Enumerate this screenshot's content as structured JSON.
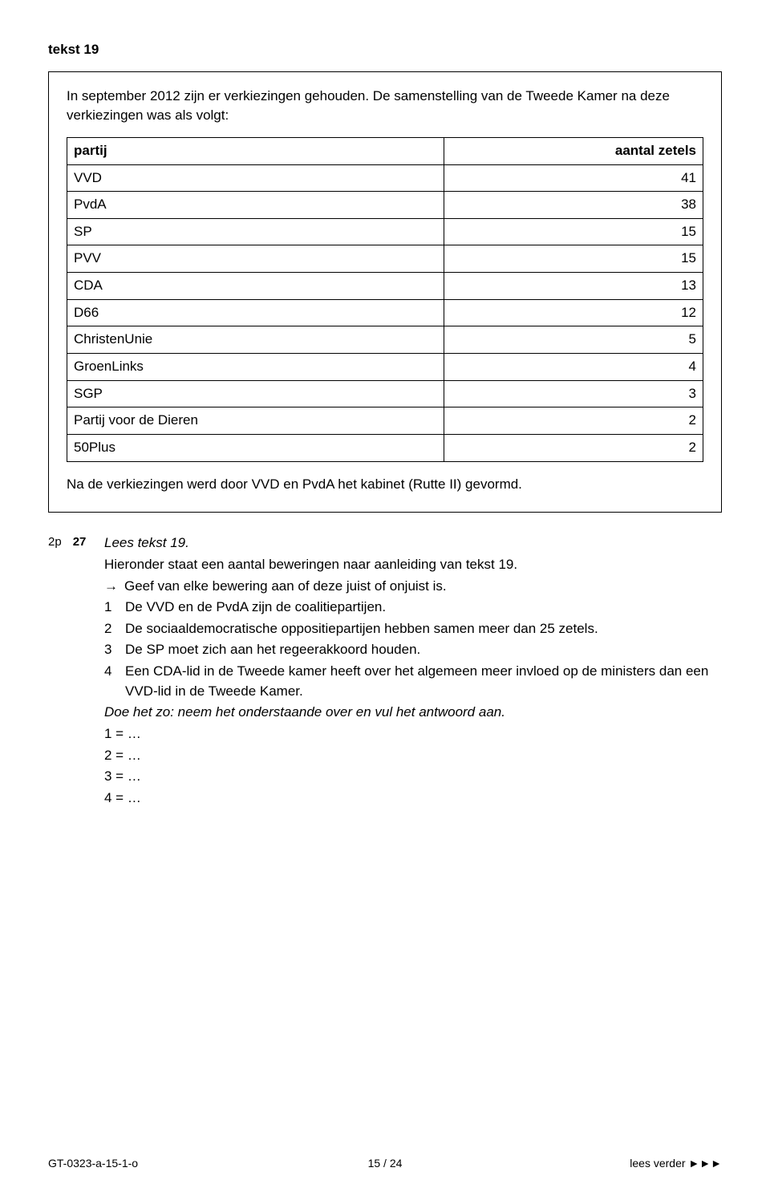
{
  "heading": "tekst 19",
  "box": {
    "intro": "In september 2012 zijn er verkiezingen gehouden. De samenstelling van de Tweede Kamer na deze verkiezingen was als volgt:",
    "table": {
      "col_party": "partij",
      "col_seats": "aantal zetels",
      "rows": [
        {
          "party": "VVD",
          "seats": "41"
        },
        {
          "party": "PvdA",
          "seats": "38"
        },
        {
          "party": "SP",
          "seats": "15"
        },
        {
          "party": "PVV",
          "seats": "15"
        },
        {
          "party": "CDA",
          "seats": "13"
        },
        {
          "party": "D66",
          "seats": "12"
        },
        {
          "party": "ChristenUnie",
          "seats": "5"
        },
        {
          "party": "GroenLinks",
          "seats": "4"
        },
        {
          "party": "SGP",
          "seats": "3"
        },
        {
          "party": "Partij voor de Dieren",
          "seats": "2"
        },
        {
          "party": "50Plus",
          "seats": "2"
        }
      ]
    },
    "after": "Na de verkiezingen werd door VVD en PvdA het kabinet (Rutte II) gevormd."
  },
  "question": {
    "points": "2p",
    "number": "27",
    "lees": "Lees tekst 19.",
    "lead": "Hieronder staat een aantal beweringen naar aanleiding van tekst 19.",
    "instruction": "Geef van elke bewering aan of deze juist of onjuist is.",
    "statements": [
      {
        "n": "1",
        "t": "De VVD en de PvdA zijn de coalitiepartijen."
      },
      {
        "n": "2",
        "t": "De sociaaldemocratische oppositiepartijen hebben samen meer dan 25 zetels."
      },
      {
        "n": "3",
        "t": "De SP moet zich aan het regeerakkoord houden."
      },
      {
        "n": "4",
        "t": "Een CDA-lid in de Tweede kamer heeft over het algemeen meer invloed op de ministers dan een VVD-lid in de Tweede Kamer."
      }
    ],
    "closing": "Doe het zo: neem het onderstaande over en vul het antwoord aan.",
    "answers": [
      "1 = …",
      "2 = …",
      "3 = …",
      "4 = …"
    ]
  },
  "footer": {
    "left": "GT-0323-a-15-1-o",
    "middle": "15 / 24",
    "right": "lees verder ►►►"
  }
}
